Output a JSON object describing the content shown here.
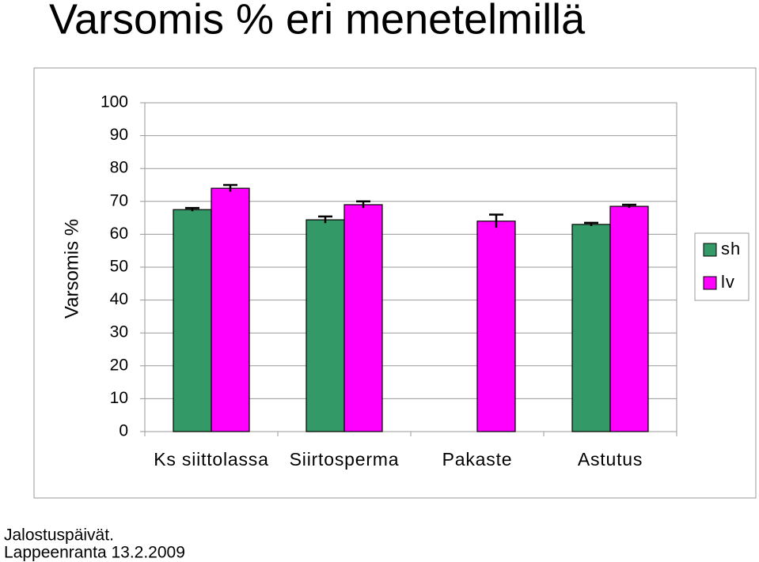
{
  "chart_data": {
    "type": "bar",
    "title": "Varsomis % eri menetelmillä",
    "y_label": "Varsomis %",
    "categories": [
      "Ks siittolassa",
      "Siirtosperma",
      "Pakaste",
      "Astutus"
    ],
    "series": [
      {
        "name": "sh",
        "color": "#339966",
        "values": [
          67.5,
          64.4,
          null,
          63
        ],
        "errors": [
          0.5,
          1,
          null,
          0.5
        ]
      },
      {
        "name": "lv",
        "color": "#ff00ff",
        "values": [
          74,
          69,
          64,
          68.5
        ],
        "errors": [
          1,
          1,
          2,
          0.5
        ]
      }
    ],
    "ylim": [
      0,
      100
    ],
    "yticks": [
      0,
      10,
      20,
      30,
      40,
      50,
      60,
      70,
      80,
      90,
      100
    ],
    "grid": true,
    "legend": "right",
    "annotations": [
      "Jalostuspäivät.",
      "Lappeenranta 13.2.2009"
    ]
  }
}
